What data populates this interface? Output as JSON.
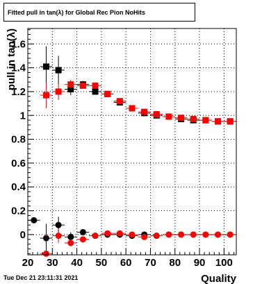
{
  "title": "Fitted pull in tan(λ) for Global Rec Pion NoHits",
  "timestamp": "Tue Dec 21 23:11:31 2021",
  "chart_data": {
    "type": "scatter",
    "title": "Fitted pull in tan(λ) for Global Rec Pion NoHits",
    "xlabel": "Quality",
    "ylabel": "pull in tan(λ)",
    "xlim": [
      20,
      105
    ],
    "ylim": [
      -0.17,
      1.73
    ],
    "grid": true,
    "x_ticks": [
      20,
      30,
      40,
      50,
      60,
      70,
      80,
      90,
      100
    ],
    "y_ticks": [
      0,
      0.2,
      0.4,
      0.6,
      0.8,
      1,
      1.2,
      1.4,
      1.6
    ],
    "series": [
      {
        "marker": "square",
        "color": "#000000",
        "points": [
          {
            "x": 27.5,
            "y": 1.41,
            "yerr": 0.17
          },
          {
            "x": 32.5,
            "y": 1.38,
            "yerr": 0.12
          },
          {
            "x": 37.5,
            "y": 1.22,
            "yerr": 0.05
          },
          {
            "x": 42.5,
            "y": 1.26,
            "yerr": 0.03
          },
          {
            "x": 47.5,
            "y": 1.2,
            "yerr": 0.02
          },
          {
            "x": 52.5,
            "y": 1.18,
            "yerr": 0.01
          },
          {
            "x": 57.5,
            "y": 1.11,
            "yerr": 0.01
          },
          {
            "x": 62.5,
            "y": 1.06,
            "yerr": 0.01
          },
          {
            "x": 67.5,
            "y": 1.02,
            "yerr": 0.01
          },
          {
            "x": 72.5,
            "y": 1.0,
            "yerr": 0.01
          },
          {
            "x": 77.5,
            "y": 0.99,
            "yerr": 0.01
          },
          {
            "x": 82.5,
            "y": 0.97,
            "yerr": 0.01
          },
          {
            "x": 87.5,
            "y": 0.96,
            "yerr": 0.01
          },
          {
            "x": 92.5,
            "y": 0.96,
            "yerr": 0.01
          },
          {
            "x": 97.5,
            "y": 0.95,
            "yerr": 0.01
          },
          {
            "x": 102.5,
            "y": 0.95,
            "yerr": 0.01
          }
        ]
      },
      {
        "marker": "square",
        "color": "#ff0000",
        "points": [
          {
            "x": 27.5,
            "y": 1.17,
            "yerr": 0.11
          },
          {
            "x": 32.5,
            "y": 1.2,
            "yerr": 0.07
          },
          {
            "x": 37.5,
            "y": 1.26,
            "yerr": 0.04
          },
          {
            "x": 42.5,
            "y": 1.25,
            "yerr": 0.02
          },
          {
            "x": 47.5,
            "y": 1.25,
            "yerr": 0.02
          },
          {
            "x": 52.5,
            "y": 1.18,
            "yerr": 0.01
          },
          {
            "x": 57.5,
            "y": 1.12,
            "yerr": 0.01
          },
          {
            "x": 62.5,
            "y": 1.06,
            "yerr": 0.01
          },
          {
            "x": 67.5,
            "y": 1.03,
            "yerr": 0.01
          },
          {
            "x": 72.5,
            "y": 1.01,
            "yerr": 0.01
          },
          {
            "x": 77.5,
            "y": 0.99,
            "yerr": 0.01
          },
          {
            "x": 82.5,
            "y": 0.98,
            "yerr": 0.01
          },
          {
            "x": 87.5,
            "y": 0.97,
            "yerr": 0.01
          },
          {
            "x": 92.5,
            "y": 0.96,
            "yerr": 0.01
          },
          {
            "x": 97.5,
            "y": 0.95,
            "yerr": 0.01
          },
          {
            "x": 102.5,
            "y": 0.95,
            "yerr": 0.01
          }
        ]
      },
      {
        "marker": "circle",
        "color": "#000000",
        "points": [
          {
            "x": 22.5,
            "y": 0.12,
            "yerr": 0.0
          },
          {
            "x": 27.5,
            "y": -0.03,
            "yerr": 0.12
          },
          {
            "x": 32.5,
            "y": 0.08,
            "yerr": 0.07
          },
          {
            "x": 37.5,
            "y": -0.02,
            "yerr": 0.04
          },
          {
            "x": 42.5,
            "y": 0.02,
            "yerr": 0.02
          },
          {
            "x": 47.5,
            "y": -0.01,
            "yerr": 0.01
          },
          {
            "x": 52.5,
            "y": 0.0,
            "yerr": 0.01
          },
          {
            "x": 57.5,
            "y": 0.0,
            "yerr": 0.01
          },
          {
            "x": 62.5,
            "y": -0.01,
            "yerr": 0.01
          },
          {
            "x": 67.5,
            "y": 0.0,
            "yerr": 0.01
          },
          {
            "x": 72.5,
            "y": -0.01,
            "yerr": 0.01
          },
          {
            "x": 77.5,
            "y": 0.0,
            "yerr": 0.01
          },
          {
            "x": 82.5,
            "y": 0.0,
            "yerr": 0.01
          },
          {
            "x": 87.5,
            "y": 0.0,
            "yerr": 0.01
          },
          {
            "x": 92.5,
            "y": 0.0,
            "yerr": 0.01
          },
          {
            "x": 97.5,
            "y": 0.0,
            "yerr": 0.01
          },
          {
            "x": 102.5,
            "y": 0.0,
            "yerr": 0.01
          }
        ]
      },
      {
        "marker": "circle",
        "color": "#ff0000",
        "points": [
          {
            "x": 27.5,
            "y": -0.16,
            "yerr": 0.02
          },
          {
            "x": 32.5,
            "y": -0.01,
            "yerr": 0.06
          },
          {
            "x": 37.5,
            "y": -0.07,
            "yerr": 0.03
          },
          {
            "x": 42.5,
            "y": -0.04,
            "yerr": 0.02
          },
          {
            "x": 47.5,
            "y": -0.01,
            "yerr": 0.01
          },
          {
            "x": 52.5,
            "y": 0.01,
            "yerr": 0.01
          },
          {
            "x": 57.5,
            "y": 0.01,
            "yerr": 0.01
          },
          {
            "x": 62.5,
            "y": 0.0,
            "yerr": 0.01
          },
          {
            "x": 67.5,
            "y": -0.02,
            "yerr": 0.01
          },
          {
            "x": 72.5,
            "y": -0.01,
            "yerr": 0.01
          },
          {
            "x": 77.5,
            "y": 0.0,
            "yerr": 0.01
          },
          {
            "x": 82.5,
            "y": 0.0,
            "yerr": 0.01
          },
          {
            "x": 87.5,
            "y": 0.0,
            "yerr": 0.01
          },
          {
            "x": 92.5,
            "y": 0.0,
            "yerr": 0.01
          },
          {
            "x": 97.5,
            "y": 0.0,
            "yerr": 0.01
          },
          {
            "x": 102.5,
            "y": 0.0,
            "yerr": 0.01
          }
        ]
      }
    ]
  }
}
